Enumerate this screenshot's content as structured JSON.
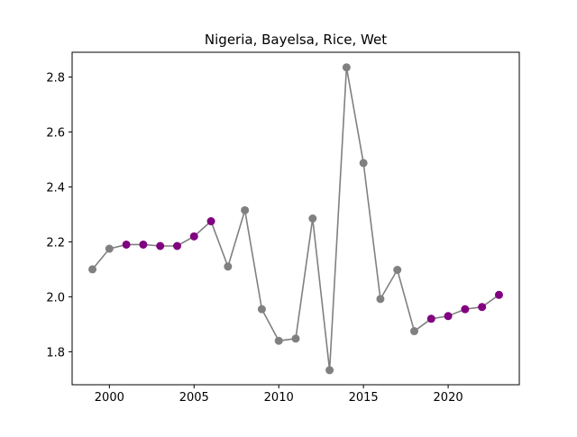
{
  "chart_data": {
    "type": "line",
    "title": "Nigeria, Bayelsa, Rice, Wet",
    "xlabel": "",
    "ylabel": "",
    "xlim": [
      1997.8,
      2024.2
    ],
    "ylim": [
      1.68,
      2.89
    ],
    "xticks": [
      2000,
      2005,
      2010,
      2015,
      2020
    ],
    "yticks": [
      1.8,
      2.0,
      2.2,
      2.4,
      2.6,
      2.8
    ],
    "ytick_labels": [
      "1.8",
      "2.0",
      "2.2",
      "2.4",
      "2.6",
      "2.8"
    ],
    "grid": false,
    "legend": "none",
    "line_color": "#808080",
    "colors": {
      "gray": "#808080",
      "purple": "#800080"
    },
    "points": [
      {
        "x": 1999,
        "y": 2.1,
        "color": "gray"
      },
      {
        "x": 2000,
        "y": 2.175,
        "color": "gray"
      },
      {
        "x": 2001,
        "y": 2.19,
        "color": "purple"
      },
      {
        "x": 2002,
        "y": 2.19,
        "color": "purple"
      },
      {
        "x": 2003,
        "y": 2.185,
        "color": "purple"
      },
      {
        "x": 2004,
        "y": 2.185,
        "color": "purple"
      },
      {
        "x": 2005,
        "y": 2.22,
        "color": "purple"
      },
      {
        "x": 2006,
        "y": 2.275,
        "color": "purple"
      },
      {
        "x": 2007,
        "y": 2.11,
        "color": "gray"
      },
      {
        "x": 2008,
        "y": 2.315,
        "color": "gray"
      },
      {
        "x": 2009,
        "y": 1.955,
        "color": "gray"
      },
      {
        "x": 2010,
        "y": 1.84,
        "color": "gray"
      },
      {
        "x": 2011,
        "y": 1.848,
        "color": "gray"
      },
      {
        "x": 2012,
        "y": 2.285,
        "color": "gray"
      },
      {
        "x": 2013,
        "y": 1.733,
        "color": "gray"
      },
      {
        "x": 2014,
        "y": 2.835,
        "color": "gray"
      },
      {
        "x": 2015,
        "y": 2.487,
        "color": "gray"
      },
      {
        "x": 2016,
        "y": 1.992,
        "color": "gray"
      },
      {
        "x": 2017,
        "y": 2.098,
        "color": "gray"
      },
      {
        "x": 2018,
        "y": 1.875,
        "color": "gray"
      },
      {
        "x": 2019,
        "y": 1.92,
        "color": "purple"
      },
      {
        "x": 2020,
        "y": 1.93,
        "color": "purple"
      },
      {
        "x": 2021,
        "y": 1.955,
        "color": "purple"
      },
      {
        "x": 2022,
        "y": 1.963,
        "color": "purple"
      },
      {
        "x": 2023,
        "y": 2.007,
        "color": "purple"
      }
    ]
  }
}
